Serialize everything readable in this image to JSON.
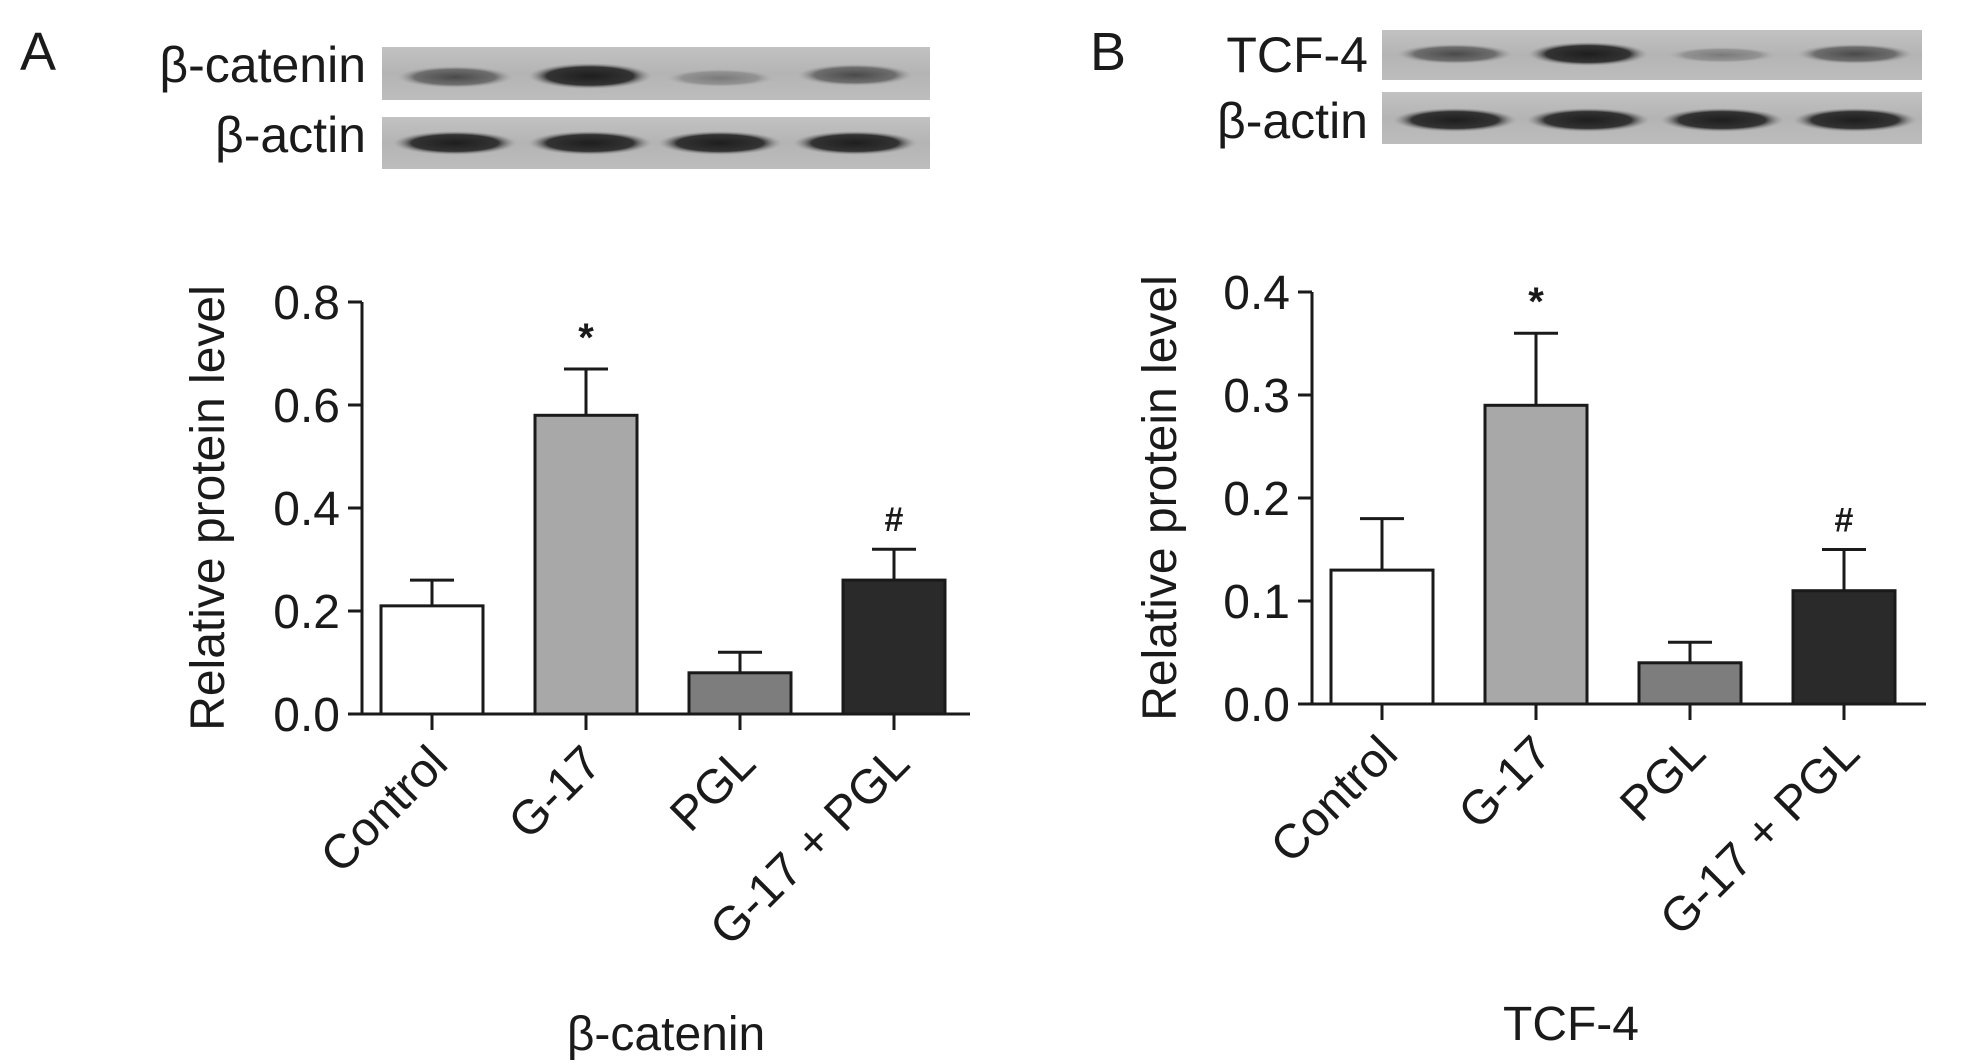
{
  "panels": [
    {
      "letter": "A",
      "blot_labels": [
        "β-catenin",
        "β-actin"
      ]
    },
    {
      "letter": "B",
      "blot_labels": [
        "TCF-4",
        "β-actin"
      ]
    }
  ],
  "chart_data": [
    {
      "type": "bar",
      "title": "",
      "xlabel": "β-catenin",
      "ylabel": "Relative protein level",
      "categories": [
        "Control",
        "G-17",
        "PGL",
        "G-17 + PGL"
      ],
      "values": [
        0.21,
        0.58,
        0.08,
        0.26
      ],
      "errors": [
        0.05,
        0.09,
        0.04,
        0.06
      ],
      "significance": [
        "",
        "*",
        "",
        "#"
      ],
      "bar_colors": [
        "#ffffff",
        "#a8a8a8",
        "#7d7d7d",
        "#2a2a2a"
      ],
      "yticks": [
        "0.0",
        "0.2",
        "0.4",
        "0.6",
        "0.8"
      ],
      "ylim": [
        0,
        0.8
      ],
      "grid": false
    },
    {
      "type": "bar",
      "title": "",
      "xlabel": "TCF-4",
      "ylabel": "Relative protein level",
      "categories": [
        "Control",
        "G-17",
        "PGL",
        "G-17 + PGL"
      ],
      "values": [
        0.13,
        0.29,
        0.04,
        0.11
      ],
      "errors": [
        0.05,
        0.07,
        0.02,
        0.04
      ],
      "significance": [
        "",
        "*",
        "",
        "#"
      ],
      "bar_colors": [
        "#ffffff",
        "#a8a8a8",
        "#7d7d7d",
        "#2a2a2a"
      ],
      "yticks": [
        "0.0",
        "0.1",
        "0.2",
        "0.3",
        "0.4"
      ],
      "ylim": [
        0,
        0.4
      ],
      "grid": false
    }
  ]
}
